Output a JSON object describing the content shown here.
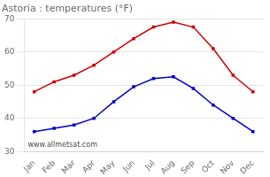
{
  "chart_data": {
    "type": "line",
    "title": "Astoria : temperatures (°F)",
    "categories": [
      "Jan",
      "Feb",
      "Mar",
      "Apr",
      "May",
      "Jun",
      "Jul",
      "Aug",
      "Sep",
      "Oct",
      "Nov",
      "Dec"
    ],
    "series": [
      {
        "color": "#cc0000",
        "marker": "square",
        "values": [
          48,
          51,
          53,
          56,
          60,
          64,
          67.5,
          69,
          67.5,
          61,
          53,
          48
        ]
      },
      {
        "color": "#0000cc",
        "marker": "square",
        "values": [
          36,
          37,
          38,
          40,
          45,
          49.5,
          52,
          52.5,
          49,
          44,
          40,
          36
        ]
      }
    ],
    "ylim": [
      30,
      70
    ],
    "yticks": [
      30,
      40,
      50,
      60,
      70
    ],
    "grid": true,
    "annotations": [
      "www.allmetsat.com"
    ]
  }
}
